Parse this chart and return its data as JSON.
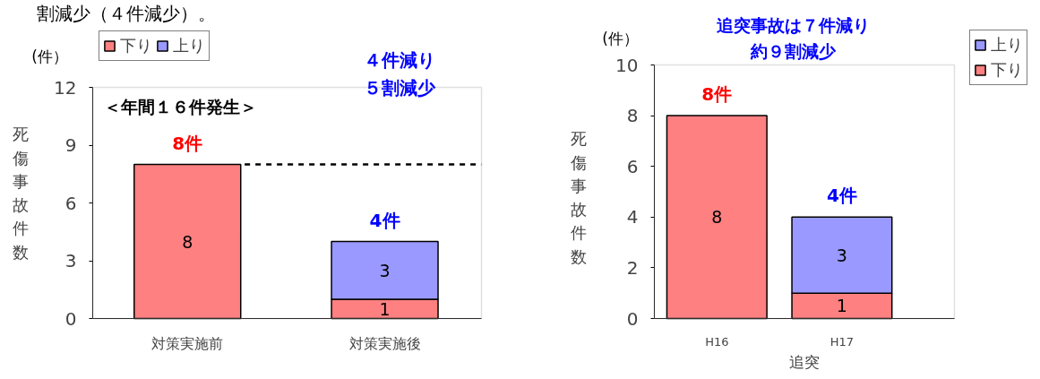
{
  "chart_data": [
    {
      "type": "bar",
      "stacked": true,
      "categories": [
        "対策実施前",
        "対策実施後"
      ],
      "series": [
        {
          "name": "下り",
          "color": "#ff8080",
          "values": [
            8,
            1
          ],
          "value_labels": [
            "8",
            "1"
          ]
        },
        {
          "name": "上り",
          "color": "#9999ff",
          "values": [
            null,
            3
          ],
          "value_labels": [
            null,
            "3"
          ]
        }
      ],
      "totals": [
        "8件",
        "4件"
      ],
      "ylabel": "死傷事故件数",
      "ylim": [
        0,
        12
      ],
      "yticks": [
        0,
        3,
        6,
        9,
        12
      ],
      "grid": false,
      "legend": "top",
      "ref_lines": [
        {
          "axis": "y",
          "value": 8,
          "line_style": "dashed"
        }
      ],
      "annotations": [
        "割減少（４件減少）。",
        "(件）",
        "＜年間１６件発生＞",
        "４件減り５割減少"
      ]
    },
    {
      "type": "bar",
      "stacked": true,
      "categories": [
        "H16",
        "H17"
      ],
      "xlabel": "追突",
      "series": [
        {
          "name": "下り",
          "color": "#ff8080",
          "values": [
            8,
            1
          ],
          "value_labels": [
            "8",
            "1"
          ]
        },
        {
          "name": "上り",
          "color": "#9999ff",
          "values": [
            null,
            3
          ],
          "value_labels": [
            null,
            "3"
          ]
        }
      ],
      "totals": [
        "8件",
        "4件"
      ],
      "ylabel": "死傷事故件数",
      "ylim": [
        0,
        10
      ],
      "yticks": [
        0,
        2,
        4,
        6,
        8,
        10
      ],
      "grid": false,
      "legend": "right",
      "annotations": [
        "(件）",
        "追突事故は７件減り約９割減少"
      ]
    }
  ]
}
